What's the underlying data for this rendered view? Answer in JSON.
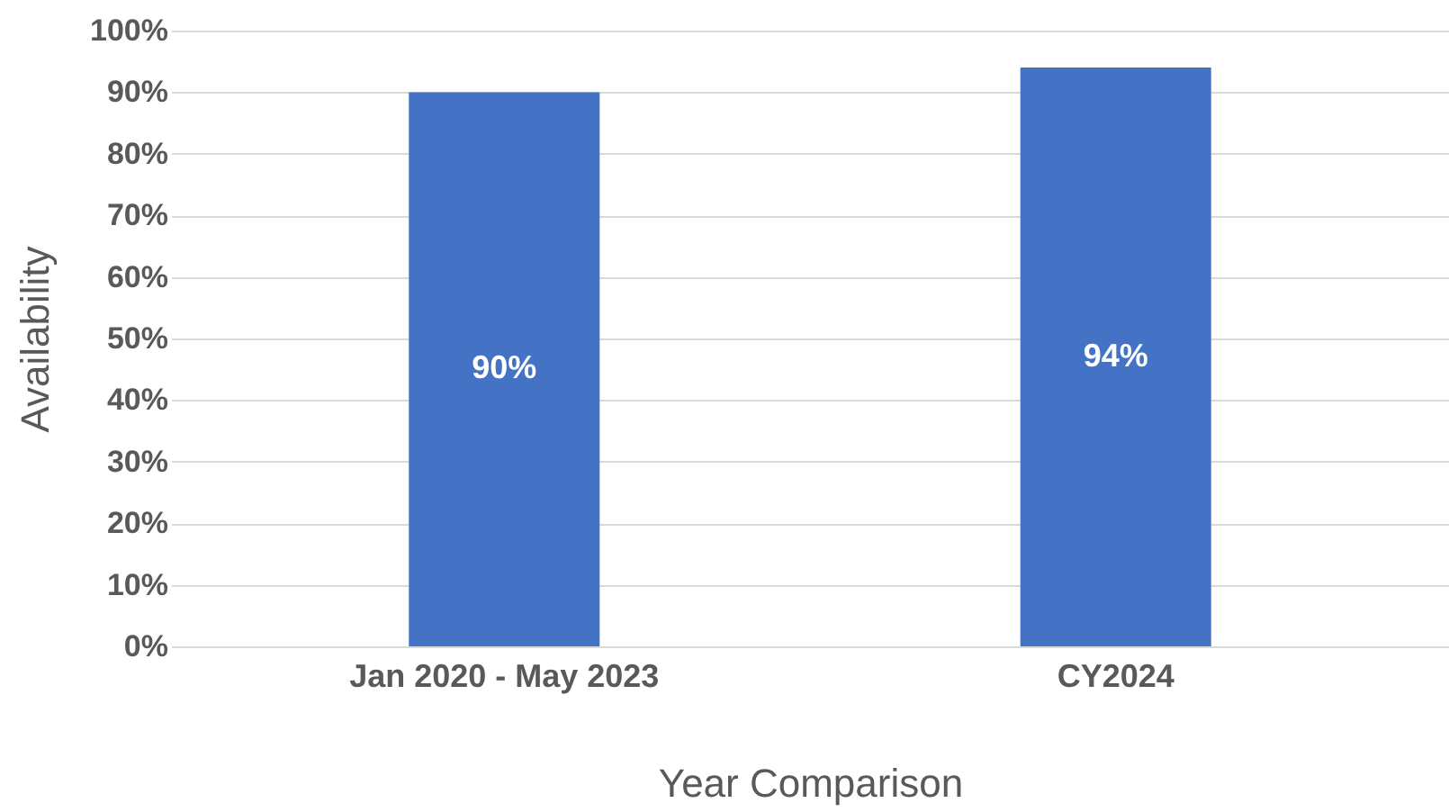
{
  "chart_data": {
    "type": "bar",
    "xlabel": "Year Comparison",
    "ylabel": "Availability",
    "categories": [
      "Jan 2020 - May 2023",
      "CY2024"
    ],
    "values": [
      90,
      94
    ],
    "color": "#4472c4",
    "value_labels": [
      "90%",
      "94%"
    ],
    "ylim": [
      0,
      100
    ],
    "yticks": [
      {
        "value": 0,
        "label": "0%"
      },
      {
        "value": 10,
        "label": "10%"
      },
      {
        "value": 20,
        "label": "20%"
      },
      {
        "value": 30,
        "label": "30%"
      },
      {
        "value": 40,
        "label": "40%"
      },
      {
        "value": 50,
        "label": "50%"
      },
      {
        "value": 60,
        "label": "60%"
      },
      {
        "value": 70,
        "label": "70%"
      },
      {
        "value": 80,
        "label": "80%"
      },
      {
        "value": 90,
        "label": "90%"
      },
      {
        "value": 100,
        "label": "100%"
      }
    ],
    "grid": "y"
  }
}
